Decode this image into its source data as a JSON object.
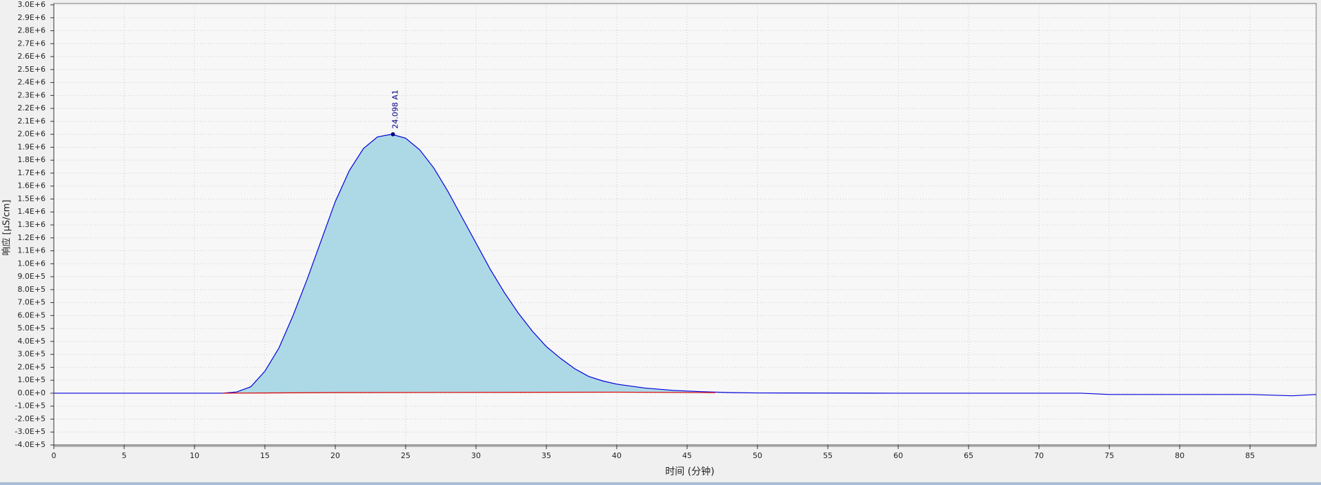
{
  "chart_data": {
    "type": "line",
    "xlabel": "时间 (分钟)",
    "ylabel": "响应 [µS/cm]",
    "xlim": [
      0,
      89.7
    ],
    "ylim": [
      -400000,
      3000000
    ],
    "xticks": [
      0,
      5,
      10,
      15,
      20,
      25,
      30,
      35,
      40,
      45,
      50,
      55,
      60,
      65,
      70,
      75,
      80,
      85
    ],
    "yticks": [
      {
        "value": -400000,
        "label": "-4.0E+5"
      },
      {
        "value": -300000,
        "label": "-3.0E+5"
      },
      {
        "value": -200000,
        "label": "-2.0E+5"
      },
      {
        "value": -100000,
        "label": "-1.0E+5"
      },
      {
        "value": 0,
        "label": "0.0E+0"
      },
      {
        "value": 100000,
        "label": "1.0E+5"
      },
      {
        "value": 200000,
        "label": "2.0E+5"
      },
      {
        "value": 300000,
        "label": "3.0E+5"
      },
      {
        "value": 400000,
        "label": "4.0E+5"
      },
      {
        "value": 500000,
        "label": "5.0E+5"
      },
      {
        "value": 600000,
        "label": "6.0E+5"
      },
      {
        "value": 700000,
        "label": "7.0E+5"
      },
      {
        "value": 800000,
        "label": "8.0E+5"
      },
      {
        "value": 900000,
        "label": "9.0E+5"
      },
      {
        "value": 1000000,
        "label": "1.0E+6"
      },
      {
        "value": 1100000,
        "label": "1.1E+6"
      },
      {
        "value": 1200000,
        "label": "1.2E+6"
      },
      {
        "value": 1300000,
        "label": "1.3E+6"
      },
      {
        "value": 1400000,
        "label": "1.4E+6"
      },
      {
        "value": 1500000,
        "label": "1.5E+6"
      },
      {
        "value": 1600000,
        "label": "1.6E+6"
      },
      {
        "value": 1700000,
        "label": "1.7E+6"
      },
      {
        "value": 1800000,
        "label": "1.8E+6"
      },
      {
        "value": 1900000,
        "label": "1.9E+6"
      },
      {
        "value": 2000000,
        "label": "2.0E+6"
      },
      {
        "value": 2100000,
        "label": "2.1E+6"
      },
      {
        "value": 2200000,
        "label": "2.2E+6"
      },
      {
        "value": 2300000,
        "label": "2.3E+6"
      },
      {
        "value": 2400000,
        "label": "2.4E+6"
      },
      {
        "value": 2500000,
        "label": "2.5E+6"
      },
      {
        "value": 2600000,
        "label": "2.6E+6"
      },
      {
        "value": 2700000,
        "label": "2.7E+6"
      },
      {
        "value": 2800000,
        "label": "2.8E+6"
      },
      {
        "value": 2900000,
        "label": "2.9E+6"
      },
      {
        "value": 3000000,
        "label": "3.0E+6"
      }
    ],
    "grid": true,
    "fill_color": "#add8e6",
    "series": [
      {
        "color": "#0000dd",
        "x": [
          0,
          12,
          13,
          14,
          15,
          16,
          17,
          18,
          19,
          20,
          21,
          22,
          23,
          24,
          25,
          26,
          27,
          28,
          29,
          30,
          31,
          32,
          33,
          34,
          35,
          36,
          37,
          38,
          39,
          40,
          42,
          44,
          46,
          48,
          50,
          60,
          73,
          75,
          85,
          88,
          89.7
        ],
        "values": [
          0,
          0,
          10000,
          50000,
          170000,
          350000,
          600000,
          880000,
          1180000,
          1480000,
          1720000,
          1890000,
          1980000,
          2000000,
          1970000,
          1880000,
          1740000,
          1560000,
          1360000,
          1160000,
          960000,
          780000,
          620000,
          480000,
          360000,
          270000,
          190000,
          130000,
          95000,
          70000,
          40000,
          22000,
          12000,
          5000,
          2000,
          0,
          0,
          -10000,
          -10000,
          -20000,
          -10000
        ]
      },
      {
        "color": "#dd0000",
        "x": [
          12,
          20,
          40,
          47
        ],
        "values": [
          0,
          5000,
          8000,
          5000
        ]
      }
    ],
    "annotation": {
      "text": "24.098 A1",
      "x": 24.098,
      "y": 2000000,
      "color": "#000080"
    }
  }
}
